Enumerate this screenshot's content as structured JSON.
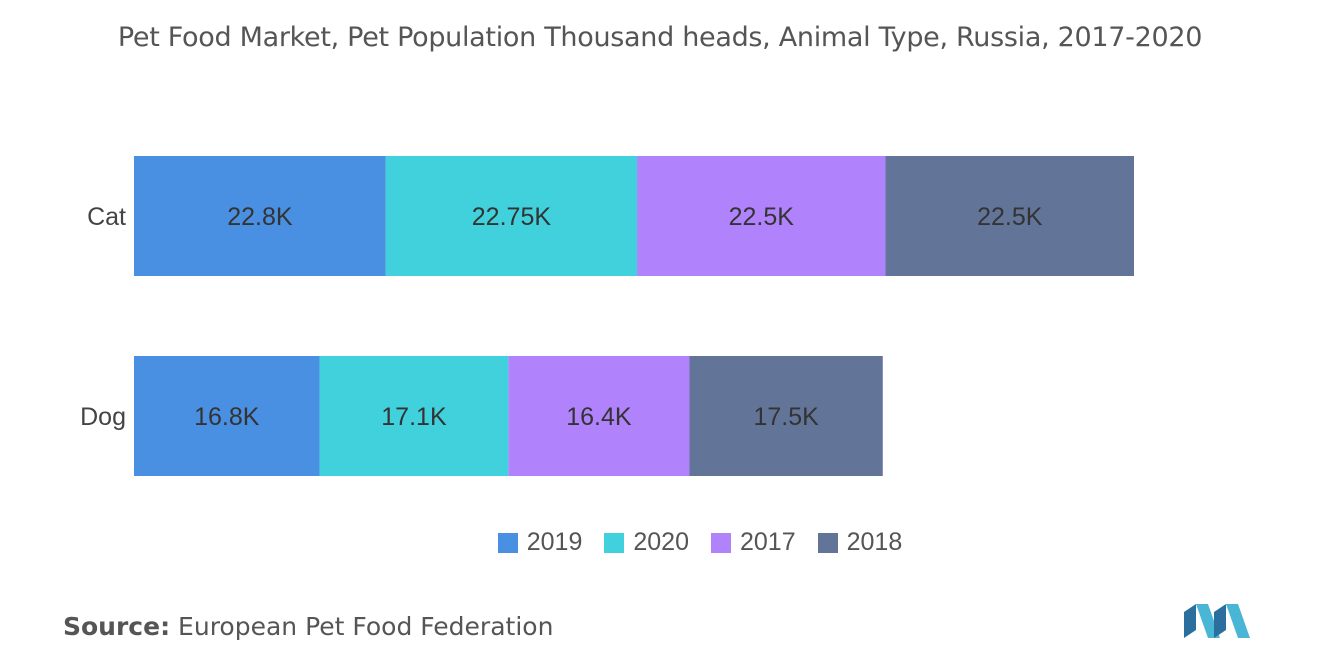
{
  "title": "Pet Food Market, Pet Population Thousand heads, Animal Type, Russia, 2017-2020",
  "source": {
    "label": "Source:",
    "text": "European Pet Food Federation"
  },
  "colors": {
    "2019": "#4a90e2",
    "2020": "#40d1dc",
    "2017": "#b083fc",
    "2018": "#627598"
  },
  "chart_data": {
    "type": "bar",
    "orientation": "horizontal",
    "stacked": true,
    "categories": [
      "Cat",
      "Dog"
    ],
    "series": [
      {
        "name": "2019",
        "values": [
          22.8,
          16.8
        ],
        "labels": [
          "22.8K",
          "16.8K"
        ]
      },
      {
        "name": "2020",
        "values": [
          22.75,
          17.1
        ],
        "labels": [
          "22.75K",
          "17.1K"
        ]
      },
      {
        "name": "2017",
        "values": [
          22.5,
          16.4
        ],
        "labels": [
          "22.5K",
          "16.4K"
        ]
      },
      {
        "name": "2018",
        "values": [
          22.5,
          17.5
        ],
        "labels": [
          "22.5K",
          "17.5K"
        ]
      }
    ],
    "xlim": [
      0,
      90.55
    ],
    "grid": false,
    "legend_position": "bottom"
  }
}
